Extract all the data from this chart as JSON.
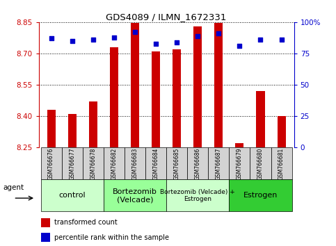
{
  "title": "GDS4089 / ILMN_1672331",
  "samples": [
    "GSM766676",
    "GSM766677",
    "GSM766678",
    "GSM766682",
    "GSM766683",
    "GSM766684",
    "GSM766685",
    "GSM766686",
    "GSM766687",
    "GSM766679",
    "GSM766680",
    "GSM766681"
  ],
  "red_values": [
    8.43,
    8.41,
    8.47,
    8.73,
    8.845,
    8.71,
    8.72,
    8.83,
    8.845,
    8.27,
    8.52,
    8.4
  ],
  "blue_values": [
    87,
    85,
    86,
    88,
    92,
    83,
    84,
    89,
    91,
    81,
    86,
    86
  ],
  "ylim_left": [
    8.25,
    8.85
  ],
  "ylim_right": [
    0,
    100
  ],
  "yticks_left": [
    8.25,
    8.4,
    8.55,
    8.7,
    8.85
  ],
  "yticks_right": [
    0,
    25,
    50,
    75,
    100
  ],
  "groups": [
    {
      "label": "control",
      "start": 0,
      "end": 3,
      "color": "#ccffcc",
      "fontsize": 8
    },
    {
      "label": "Bortezomib\n(Velcade)",
      "start": 3,
      "end": 6,
      "color": "#99ff99",
      "fontsize": 8
    },
    {
      "label": "Bortezomib (Velcade) +\nEstrogen",
      "start": 6,
      "end": 9,
      "color": "#ccffcc",
      "fontsize": 6.5
    },
    {
      "label": "Estrogen",
      "start": 9,
      "end": 12,
      "color": "#33cc33",
      "fontsize": 8
    }
  ],
  "bar_color": "#cc0000",
  "dot_color": "#0000cc",
  "bar_bottom": 8.25,
  "legend_red": "transformed count",
  "legend_blue": "percentile rank within the sample",
  "agent_label": "agent",
  "left_axis_color": "#cc0000",
  "right_axis_color": "#0000cc",
  "sample_bg_color": "#d3d3d3",
  "bar_width": 0.4
}
